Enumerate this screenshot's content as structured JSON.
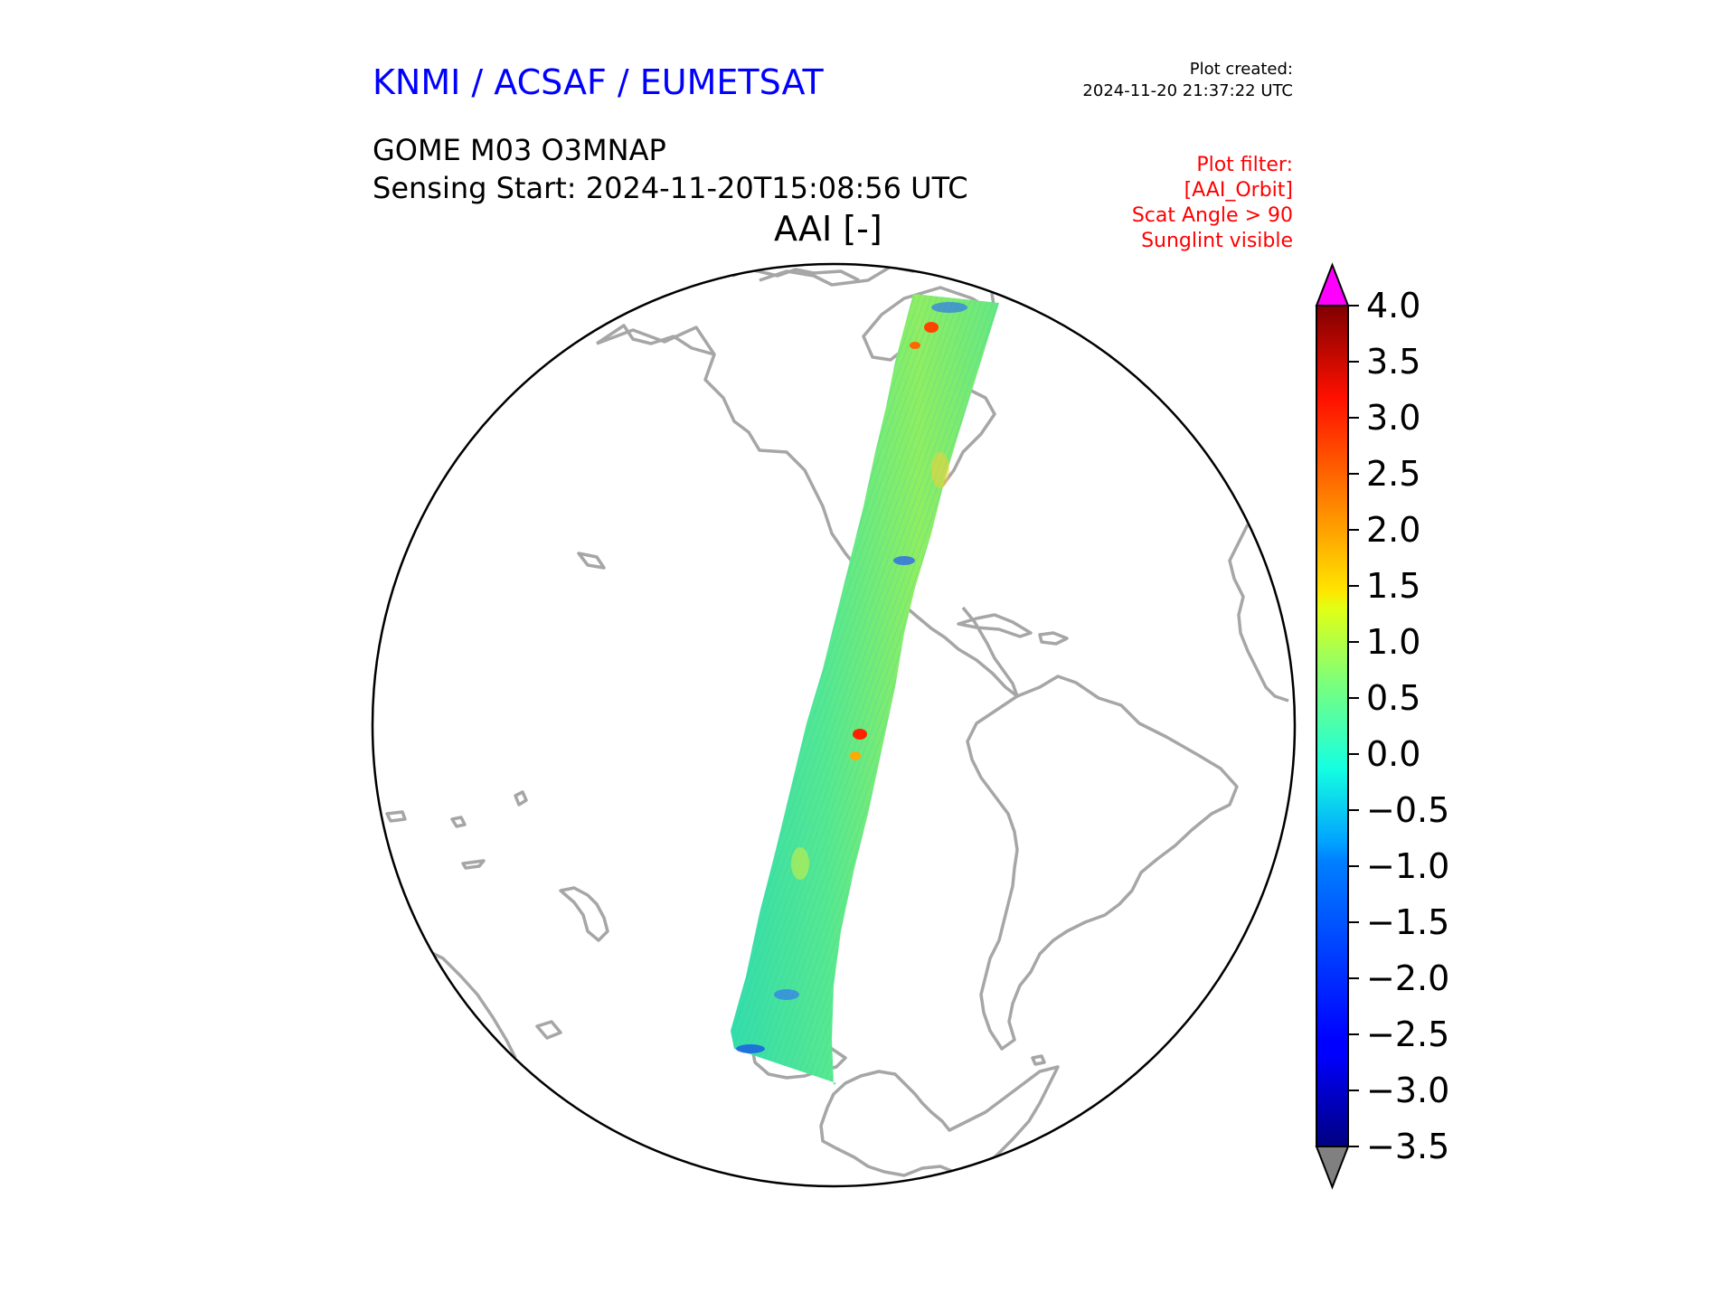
{
  "header": {
    "organization": "KNMI / ACSAF / EUMETSAT",
    "plot_created_label": "Plot created:",
    "plot_created_time": "2024-11-20 21:37:22 UTC"
  },
  "product": {
    "title": "GOME M03 O3MNAP",
    "sensing_start": "Sensing Start: 2024-11-20T15:08:56 UTC",
    "variable": "AAI [-]"
  },
  "plot_filter": {
    "lines": [
      "Plot filter:",
      "[AAI_Orbit]",
      "Scat Angle > 90",
      "Sunglint visible"
    ]
  },
  "colorbar": {
    "min": -3.5,
    "max": 4.0,
    "tick_labels": [
      "4.0",
      "3.5",
      "3.0",
      "2.5",
      "2.0",
      "1.5",
      "1.0",
      "0.5",
      "0.0",
      "−0.5",
      "−1.0",
      "−1.5",
      "−2.0",
      "−2.5",
      "−3.0",
      "−3.5"
    ],
    "tick_values": [
      4.0,
      3.5,
      3.0,
      2.5,
      2.0,
      1.5,
      1.0,
      0.5,
      0.0,
      -0.5,
      -1.0,
      -1.5,
      -2.0,
      -2.5,
      -3.0,
      -3.5
    ],
    "colormap": "jet",
    "over_color": "#ff00ff",
    "under_color": "#808080"
  },
  "map": {
    "projection": "orthographic",
    "coastline_color": "#a6a6a6",
    "border_color": "#000000"
  },
  "colors": {
    "title_blue": "#0000ff",
    "filter_red": "#ff0000"
  }
}
